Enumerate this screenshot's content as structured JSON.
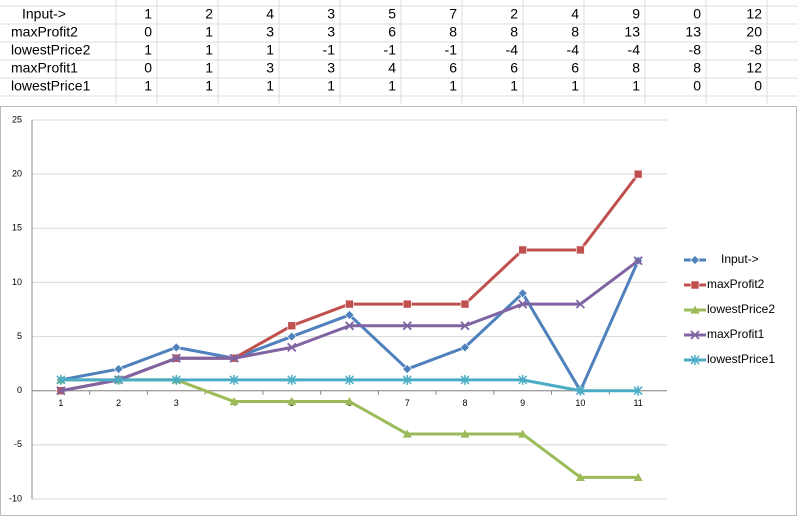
{
  "table": {
    "rows": [
      [
        "Input->",
        1,
        2,
        4,
        3,
        5,
        7,
        2,
        4,
        9,
        0,
        12
      ],
      [
        "maxProfit2",
        0,
        1,
        3,
        3,
        6,
        8,
        8,
        8,
        13,
        13,
        20
      ],
      [
        "lowestPrice2",
        1,
        1,
        1,
        -1,
        -1,
        -1,
        -4,
        -4,
        -4,
        -8,
        -8
      ],
      [
        "maxProfit1",
        0,
        1,
        3,
        3,
        4,
        6,
        6,
        6,
        8,
        8,
        12
      ],
      [
        "lowestPrice1",
        1,
        1,
        1,
        1,
        1,
        1,
        1,
        1,
        1,
        0,
        0
      ]
    ]
  },
  "chart_data": {
    "type": "line",
    "categories": [
      "1",
      "2",
      "3",
      "4",
      "5",
      "6",
      "7",
      "8",
      "9",
      "10",
      "11"
    ],
    "series": [
      {
        "name": "Input->",
        "color": "#4f81bd",
        "marker": "diamond",
        "values": [
          1,
          2,
          4,
          3,
          5,
          7,
          2,
          4,
          9,
          0,
          12
        ]
      },
      {
        "name": "maxProfit2",
        "color": "#c0504d",
        "marker": "square",
        "values": [
          0,
          1,
          3,
          3,
          6,
          8,
          8,
          8,
          13,
          13,
          20
        ]
      },
      {
        "name": "lowestPrice2",
        "color": "#9bbb59",
        "marker": "triangle",
        "values": [
          1,
          1,
          1,
          -1,
          -1,
          -1,
          -4,
          -4,
          -4,
          -8,
          -8
        ]
      },
      {
        "name": "maxProfit1",
        "color": "#8064a2",
        "marker": "x",
        "values": [
          0,
          1,
          3,
          3,
          4,
          6,
          6,
          6,
          8,
          8,
          12
        ]
      },
      {
        "name": "lowestPrice1",
        "color": "#4bacc6",
        "marker": "star",
        "values": [
          1,
          1,
          1,
          1,
          1,
          1,
          1,
          1,
          1,
          0,
          0
        ]
      }
    ],
    "ylim": [
      -10,
      25
    ],
    "yticks": [
      -10,
      -5,
      0,
      5,
      10,
      15,
      20,
      25
    ],
    "grid": true,
    "legend": "right"
  }
}
